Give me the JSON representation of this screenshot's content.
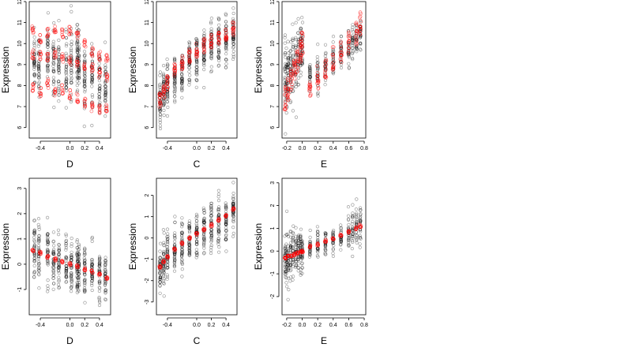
{
  "chart_data": [
    {
      "type": "scatter",
      "xlabel": "D",
      "ylabel": "Expression",
      "xlim": [
        -0.55,
        0.55
      ],
      "ylim": [
        5.5,
        12.0
      ],
      "x_ticks": [
        -0.4,
        0.0,
        0.2,
        0.4
      ],
      "y_ticks": [
        6,
        7,
        8,
        9,
        10,
        11,
        12
      ],
      "observed": {
        "color": "#000000",
        "x_levels": [
          -0.48,
          -0.42,
          -0.3,
          -0.22,
          -0.15,
          -0.05,
          0.02,
          0.1,
          0.12,
          0.2,
          0.3,
          0.4,
          0.48
        ],
        "y_center": [
          9.3,
          9.0,
          9.4,
          9.0,
          8.8,
          8.9,
          9.0,
          9.6,
          9.3,
          8.5,
          8.5,
          8.0,
          7.9
        ],
        "y_spread": [
          1.2,
          1.3,
          1.3,
          1.4,
          1.5,
          1.5,
          1.4,
          1.3,
          1.1,
          1.2,
          1.2,
          1.2,
          1.1
        ],
        "n_per_level": 38,
        "range": [
          5.7,
          11.8
        ]
      },
      "fitted": {
        "color": "#ff0000",
        "x": [
          -0.5,
          -0.4,
          -0.3,
          -0.2,
          -0.1,
          0.0,
          0.1,
          0.2,
          0.3,
          0.4,
          0.5
        ],
        "y_bands": [
          [
            10.6,
            10.2,
            10.5,
            10.7,
            10.5,
            10.6,
            10.4,
            10.0,
            9.6,
            9.4,
            9.3
          ],
          [
            9.5,
            9.4,
            9.3,
            9.5,
            9.3,
            9.2,
            9.1,
            9.0,
            8.8,
            8.6,
            8.4
          ],
          [
            7.9,
            7.7,
            8.1,
            7.7,
            7.8,
            7.6,
            7.4,
            7.2,
            7.0,
            6.9,
            6.9
          ]
        ]
      }
    },
    {
      "type": "scatter",
      "xlabel": "C",
      "ylabel": "Expression",
      "xlim": [
        -0.55,
        0.55
      ],
      "ylim": [
        5.5,
        12.0
      ],
      "x_ticks": [
        -0.4,
        0.0,
        0.2,
        0.4
      ],
      "y_ticks": [
        6,
        7,
        8,
        9,
        10,
        11,
        12
      ],
      "observed": {
        "color": "#000000",
        "x_levels": [
          -0.5,
          -0.45,
          -0.4,
          -0.3,
          -0.2,
          -0.1,
          0.0,
          0.1,
          0.2,
          0.3,
          0.4,
          0.5
        ],
        "y_center": [
          7.2,
          7.5,
          7.8,
          8.3,
          8.7,
          9.0,
          9.4,
          9.6,
          9.8,
          10.1,
          10.2,
          10.4
        ],
        "y_spread": [
          0.9,
          0.9,
          1.0,
          1.0,
          1.0,
          1.0,
          1.0,
          1.0,
          1.0,
          1.0,
          1.0,
          1.0
        ],
        "n_per_level": 42,
        "range": [
          5.7,
          11.8
        ]
      },
      "fitted": {
        "color": "#ff0000",
        "x": [
          -0.5,
          -0.45,
          -0.4,
          -0.3,
          -0.2,
          -0.1,
          0.0,
          0.1,
          0.2,
          0.3,
          0.4,
          0.5
        ],
        "y": [
          7.3,
          7.7,
          8.1,
          8.7,
          9.1,
          9.4,
          9.7,
          9.9,
          10.1,
          10.3,
          10.5,
          10.7
        ],
        "band_spread": 0.7
      }
    },
    {
      "type": "scatter",
      "xlabel": "E",
      "ylabel": "Expression",
      "xlim": [
        -0.26,
        0.82
      ],
      "ylim": [
        5.5,
        12.0
      ],
      "x_ticks": [
        -0.2,
        0.0,
        0.2,
        0.4,
        0.6,
        0.8
      ],
      "y_ticks": [
        6,
        7,
        8,
        9,
        10,
        11,
        12
      ],
      "observed": {
        "color": "#000000",
        "x_levels": [
          -0.22,
          -0.2,
          -0.18,
          -0.15,
          -0.12,
          -0.08,
          -0.05,
          -0.02,
          0.0,
          0.1,
          0.2,
          0.3,
          0.4,
          0.5,
          0.6,
          0.65,
          0.7,
          0.75
        ],
        "y_center": [
          8.2,
          8.4,
          8.7,
          8.8,
          9.0,
          9.2,
          9.3,
          9.6,
          9.8,
          8.5,
          8.6,
          9.0,
          9.2,
          9.6,
          9.9,
          10.2,
          10.3,
          10.5
        ],
        "y_spread": [
          1.4,
          1.4,
          1.3,
          1.3,
          1.3,
          1.2,
          1.2,
          1.1,
          1.0,
          0.6,
          0.7,
          0.7,
          0.7,
          0.7,
          0.7,
          0.6,
          0.6,
          0.6
        ],
        "n_per_level": 26,
        "range": [
          5.7,
          11.8
        ]
      },
      "fitted": {
        "color": "#ff0000",
        "x": [
          -0.22,
          -0.18,
          -0.14,
          -0.1,
          -0.06,
          -0.02,
          0.0,
          0.1,
          0.2,
          0.3,
          0.4,
          0.5,
          0.6,
          0.7,
          0.75
        ],
        "y": [
          7.4,
          7.8,
          8.3,
          8.7,
          9.1,
          9.6,
          10.0,
          8.0,
          8.4,
          8.9,
          9.3,
          9.6,
          10.0,
          10.5,
          11.0
        ],
        "band_spread": 1.1
      }
    },
    {
      "type": "scatter",
      "xlabel": "D",
      "ylabel": "Expression",
      "xlim": [
        -0.55,
        0.55
      ],
      "ylim": [
        -2.0,
        3.4
      ],
      "x_ticks": [
        -0.4,
        0.0,
        0.2,
        0.4
      ],
      "y_ticks": [
        -1,
        0,
        1,
        2,
        3
      ],
      "observed": {
        "color": "#000000",
        "x_levels": [
          -0.48,
          -0.42,
          -0.3,
          -0.22,
          -0.15,
          -0.05,
          0.02,
          0.1,
          0.12,
          0.2,
          0.3,
          0.4,
          0.48
        ],
        "y_center": [
          0.6,
          0.45,
          0.3,
          0.2,
          0.1,
          0.0,
          -0.05,
          -0.15,
          -0.1,
          -0.25,
          -0.3,
          -0.4,
          -0.5
        ],
        "y_spread": [
          1.0,
          1.0,
          0.9,
          0.9,
          0.9,
          0.9,
          0.9,
          0.9,
          0.8,
          0.8,
          0.8,
          0.8,
          0.7
        ],
        "n_per_level": 38,
        "range": [
          -1.85,
          3.3
        ]
      },
      "fitted": {
        "color": "#ff0000",
        "x": [
          -0.5,
          -0.4,
          -0.3,
          -0.2,
          -0.1,
          0.0,
          0.1,
          0.2,
          0.3,
          0.4,
          0.5
        ],
        "y": [
          0.55,
          0.45,
          0.3,
          0.2,
          0.1,
          0.0,
          -0.1,
          -0.2,
          -0.3,
          -0.4,
          -0.55
        ],
        "band_spread": 0.12
      }
    },
    {
      "type": "scatter",
      "xlabel": "C",
      "ylabel": "Expression",
      "xlim": [
        -0.55,
        0.55
      ],
      "ylim": [
        -3.6,
        2.8
      ],
      "x_ticks": [
        -0.4,
        0.0,
        0.2,
        0.4
      ],
      "y_ticks": [
        -3,
        -2,
        -1,
        0,
        1,
        2
      ],
      "observed": {
        "color": "#000000",
        "x_levels": [
          -0.5,
          -0.45,
          -0.4,
          -0.3,
          -0.2,
          -0.1,
          0.0,
          0.1,
          0.2,
          0.3,
          0.4,
          0.5
        ],
        "y_center": [
          -1.3,
          -1.1,
          -0.9,
          -0.6,
          -0.3,
          -0.1,
          0.1,
          0.3,
          0.5,
          0.7,
          0.9,
          1.2
        ],
        "y_spread": [
          1.0,
          1.0,
          1.0,
          0.9,
          0.9,
          0.9,
          0.9,
          0.9,
          0.9,
          0.9,
          0.9,
          0.9
        ],
        "n_per_level": 42,
        "range": [
          -3.3,
          2.6
        ]
      },
      "fitted": {
        "color": "#ff0000",
        "x": [
          -0.5,
          -0.45,
          -0.4,
          -0.3,
          -0.2,
          -0.1,
          0.0,
          0.1,
          0.2,
          0.3,
          0.4,
          0.5
        ],
        "y": [
          -1.35,
          -1.1,
          -0.9,
          -0.55,
          -0.25,
          0.0,
          0.2,
          0.4,
          0.6,
          0.85,
          1.05,
          1.35
        ],
        "band_spread": 0.12
      }
    },
    {
      "type": "scatter",
      "xlabel": "E",
      "ylabel": "Expression",
      "xlim": [
        -0.26,
        0.82
      ],
      "ylim": [
        -2.8,
        3.2
      ],
      "x_ticks": [
        -0.2,
        0.0,
        0.2,
        0.4,
        0.6,
        0.8
      ],
      "y_ticks": [
        -2,
        -1,
        0,
        1,
        2,
        3
      ],
      "observed": {
        "color": "#000000",
        "x_levels": [
          -0.22,
          -0.2,
          -0.18,
          -0.15,
          -0.12,
          -0.08,
          -0.05,
          -0.02,
          0.0,
          0.1,
          0.2,
          0.3,
          0.4,
          0.5,
          0.6,
          0.65,
          0.7,
          0.75
        ],
        "y_center": [
          -0.5,
          -0.4,
          -0.3,
          -0.2,
          -0.2,
          -0.1,
          -0.1,
          0.0,
          0.0,
          0.2,
          0.3,
          0.4,
          0.5,
          0.6,
          0.8,
          1.0,
          1.1,
          1.1
        ],
        "y_spread": [
          1.0,
          1.0,
          0.9,
          0.9,
          0.9,
          0.8,
          0.8,
          0.8,
          0.8,
          0.5,
          0.5,
          0.5,
          0.5,
          0.5,
          0.6,
          0.7,
          0.8,
          0.8
        ],
        "n_per_level": 26,
        "range": [
          -2.6,
          3.0
        ]
      },
      "fitted": {
        "color": "#ff0000",
        "x": [
          -0.22,
          -0.18,
          -0.14,
          -0.1,
          -0.06,
          -0.02,
          0.0,
          0.1,
          0.2,
          0.3,
          0.4,
          0.5,
          0.6,
          0.7,
          0.75
        ],
        "y": [
          -0.3,
          -0.25,
          -0.2,
          -0.15,
          -0.1,
          -0.05,
          0.0,
          0.2,
          0.3,
          0.45,
          0.55,
          0.7,
          0.85,
          1.0,
          1.1
        ],
        "band_spread": 0.12
      }
    }
  ]
}
